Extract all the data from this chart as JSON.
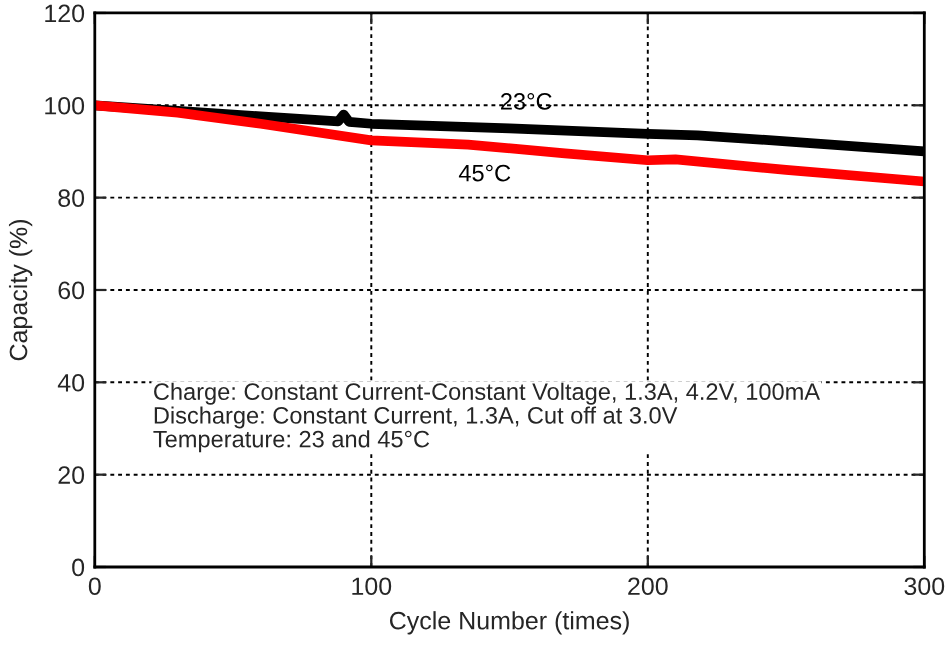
{
  "chart_data": {
    "type": "line",
    "xlabel": "Cycle Number (times)",
    "ylabel": "Capacity (%)",
    "xlim": [
      0,
      300
    ],
    "xticks": [
      0,
      100,
      200,
      300
    ],
    "ylim": [
      0,
      120
    ],
    "yticks": [
      0,
      20,
      40,
      60,
      80,
      100,
      120
    ],
    "grid": true,
    "line_style": "solid",
    "marker": "none",
    "series": [
      {
        "name": "23°C",
        "color": "#000000",
        "x": [
          0,
          30,
          60,
          88,
          90,
          92,
          100,
          150,
          200,
          218,
          250,
          300
        ],
        "values": [
          100,
          98.8,
          97.6,
          96.5,
          98,
          96.4,
          96,
          95,
          93.8,
          93.5,
          92.2,
          90
        ]
      },
      {
        "name": "45°C",
        "color": "#ff0000",
        "x": [
          0,
          30,
          60,
          100,
          135,
          170,
          200,
          210,
          250,
          300
        ],
        "values": [
          100,
          98.4,
          96,
          92.4,
          91.5,
          89.6,
          88.1,
          88.3,
          86,
          83.5
        ]
      }
    ],
    "annotations": [
      "Charge: Constant Current-Constant Voltage, 1.3A, 4.2V, 100mA\nDischarge: Constant Current, 1.3A, Cut off at 3.0V\nTemperature: 23 and 45°C"
    ]
  }
}
